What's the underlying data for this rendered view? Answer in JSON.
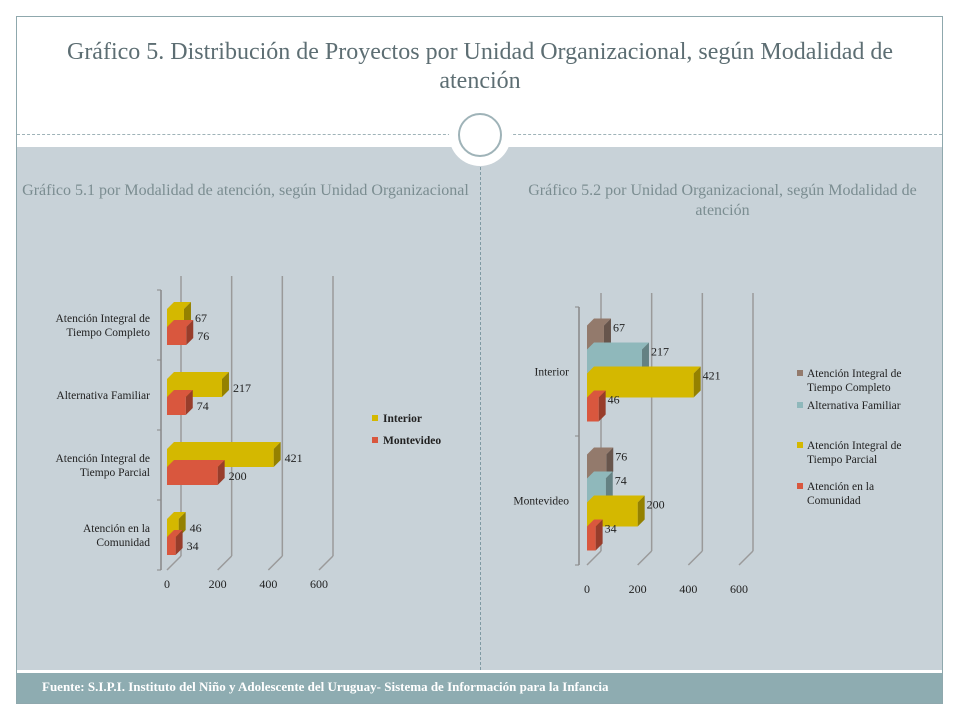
{
  "title": "Gráfico 5. Distribución de Proyectos por Unidad Organizacional, según Modalidad de atención",
  "footer": "Fuente: S.I.P.I. Instituto del Niño y Adolescente del Uruguay- Sistema de Información para la Infancia",
  "chart_data": [
    {
      "type": "bar",
      "orientation": "horizontal",
      "title": "Gráfico 5.1 por Modalidad de atención, según Unidad Organizacional",
      "categories": [
        "Atención Integral de Tiempo Completo",
        "Alternativa Familiar",
        "Atención Integral de Tiempo Parcial",
        "Atención en la Comunidad"
      ],
      "series": [
        {
          "name": "Interior",
          "values": [
            67,
            217,
            421,
            46
          ],
          "color": "#d4b800"
        },
        {
          "name": "Montevideo",
          "values": [
            76,
            74,
            200,
            34
          ],
          "color": "#d9573e"
        }
      ],
      "xlim": [
        0,
        600
      ],
      "xticks": [
        0,
        200,
        400,
        600
      ],
      "legend": "right",
      "grid": true
    },
    {
      "type": "bar",
      "orientation": "horizontal",
      "title": "Gráfico 5.2 por Unidad Organizacional, según Modalidad de atención",
      "categories": [
        "Interior",
        "Montevideo"
      ],
      "series": [
        {
          "name": "Atención Integral de Tiempo Completo",
          "values": [
            67,
            76
          ],
          "color": "#937a6c"
        },
        {
          "name": "Alternativa Familiar",
          "values": [
            217,
            74
          ],
          "color": "#8fb8bb"
        },
        {
          "name": "Atención Integral de Tiempo Parcial",
          "values": [
            421,
            200
          ],
          "color": "#d4b800"
        },
        {
          "name": "Atención en la Comunidad",
          "values": [
            46,
            34
          ],
          "color": "#d9573e"
        }
      ],
      "xlim": [
        0,
        600
      ],
      "xticks": [
        0,
        200,
        400,
        600
      ],
      "legend": "right",
      "grid": true
    }
  ]
}
